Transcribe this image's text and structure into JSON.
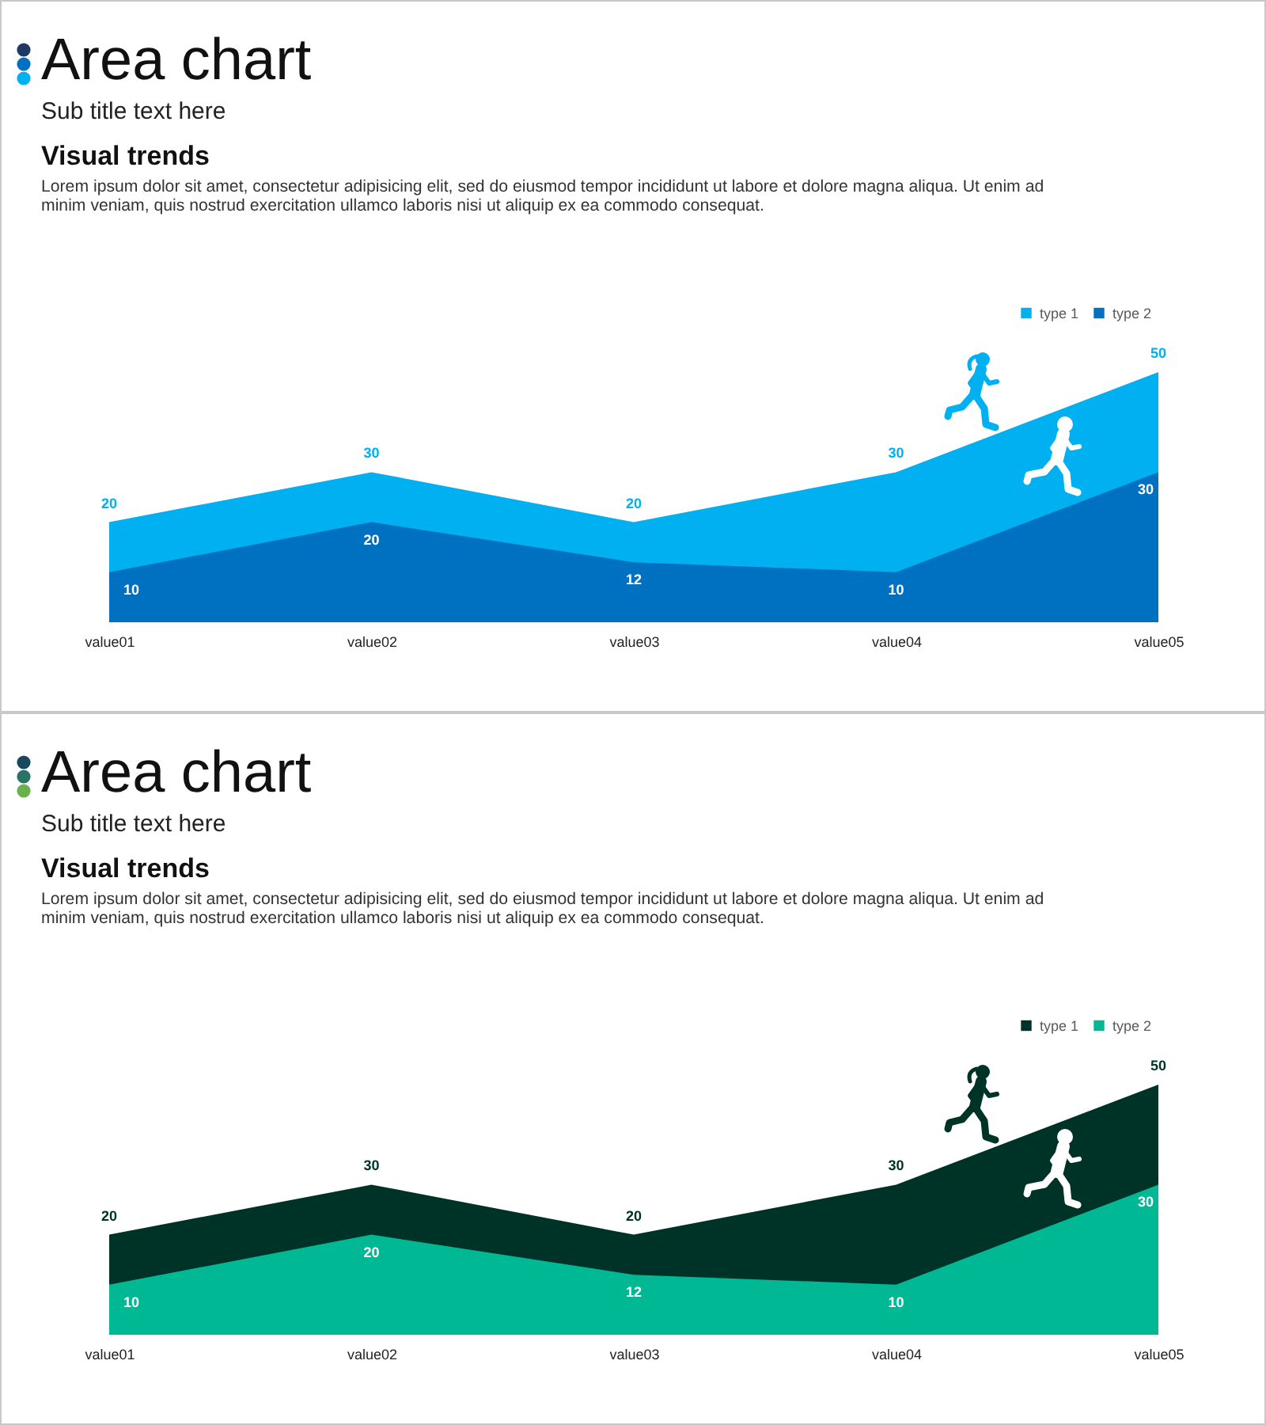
{
  "chart_data": [
    {
      "type": "area",
      "title": "Area chart",
      "subtitle": "Sub title text here",
      "annotations": [
        "Visual trends",
        "Lorem ipsum dolor sit amet, consectetur adipisicing elit, sed do eiusmod tempor incididunt ut labore et dolore magna aliqua. Ut enim ad minim veniam, quis nostrud exercitation ullamco laboris nisi ut aliquip ex ea commodo consequat."
      ],
      "categories": [
        "value01",
        "value02",
        "value03",
        "value04",
        "value05"
      ],
      "series": [
        {
          "name": "type 1",
          "color": "#00b0f0",
          "values": [
            20,
            30,
            20,
            30,
            50
          ]
        },
        {
          "name": "type 2",
          "color": "#0070c0",
          "values": [
            10,
            20,
            12,
            10,
            30
          ]
        }
      ],
      "data_labels": true,
      "legend": "top right",
      "tick_labels": "x"
    },
    {
      "type": "area",
      "title": "Area chart",
      "subtitle": "Sub title text here",
      "annotations": [
        "Visual trends",
        "Lorem ipsum dolor sit amet, consectetur adipisicing elit, sed do eiusmod tempor incididunt ut labore et dolore magna aliqua. Ut enim ad minim veniam, quis nostrud exercitation ullamco laboris nisi ut aliquip ex ea commodo consequat."
      ],
      "categories": [
        "value01",
        "value02",
        "value03",
        "value04",
        "value05"
      ],
      "series": [
        {
          "name": "type 1",
          "color": "#003328",
          "values": [
            20,
            30,
            20,
            30,
            50
          ]
        },
        {
          "name": "type 2",
          "color": "#00b894",
          "values": [
            10,
            20,
            12,
            10,
            30
          ]
        }
      ],
      "data_labels": true,
      "legend": "top right",
      "tick_labels": "x"
    }
  ]
}
